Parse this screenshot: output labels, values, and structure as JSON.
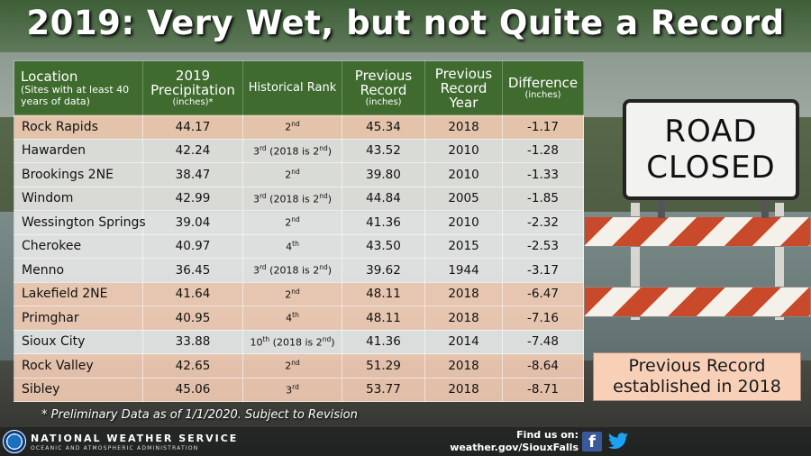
{
  "title": "2019: Very Wet, but not Quite a Record",
  "table": {
    "headers": {
      "location": "Location",
      "location_sub": "(Sites with at least 40 years of data)",
      "precip": "2019 Precipitation",
      "precip_sub": "(inches)*",
      "rank": "Historical Rank",
      "prev_record": "Previous Record",
      "prev_record_sub": "(inches)",
      "prev_year": "Previous Record Year",
      "diff": "Difference",
      "diff_sub": "(inches)"
    },
    "rows": [
      {
        "location": "Rock Rapids",
        "precip": "44.17",
        "rank_num": "2",
        "rank_sup": "nd",
        "rank_note": "",
        "prev": "45.34",
        "year": "2018",
        "diff": "-1.17"
      },
      {
        "location": "Hawarden",
        "precip": "42.24",
        "rank_num": "3",
        "rank_sup": "rd",
        "rank_note": "(2018 is 2",
        "rank_note_sup": "nd",
        "prev": "43.52",
        "year": "2010",
        "diff": "-1.28"
      },
      {
        "location": "Brookings 2NE",
        "precip": "38.47",
        "rank_num": "2",
        "rank_sup": "nd",
        "rank_note": "",
        "prev": "39.80",
        "year": "2010",
        "diff": "-1.33"
      },
      {
        "location": "Windom",
        "precip": "42.99",
        "rank_num": "3",
        "rank_sup": "rd",
        "rank_note": "(2018 is 2",
        "rank_note_sup": "nd",
        "prev": "44.84",
        "year": "2005",
        "diff": "-1.85"
      },
      {
        "location": "Wessington Springs",
        "precip": "39.04",
        "rank_num": "2",
        "rank_sup": "nd",
        "rank_note": "",
        "prev": "41.36",
        "year": "2010",
        "diff": "-2.32"
      },
      {
        "location": "Cherokee",
        "precip": "40.97",
        "rank_num": "4",
        "rank_sup": "th",
        "rank_note": "",
        "prev": "43.50",
        "year": "2015",
        "diff": "-2.53"
      },
      {
        "location": "Menno",
        "precip": "36.45",
        "rank_num": "3",
        "rank_sup": "rd",
        "rank_note": "(2018 is 2",
        "rank_note_sup": "nd",
        "prev": "39.62",
        "year": "1944",
        "diff": "-3.17"
      },
      {
        "location": "Lakefield 2NE",
        "precip": "41.64",
        "rank_num": "2",
        "rank_sup": "nd",
        "rank_note": "",
        "prev": "48.11",
        "year": "2018",
        "diff": "-6.47"
      },
      {
        "location": "Primghar",
        "precip": "40.95",
        "rank_num": "4",
        "rank_sup": "th",
        "rank_note": "",
        "prev": "48.11",
        "year": "2018",
        "diff": "-7.16"
      },
      {
        "location": "Sioux City",
        "precip": "33.88",
        "rank_num": "10",
        "rank_sup": "th",
        "rank_note": "(2018 is 2",
        "rank_note_sup": "nd",
        "prev": "41.36",
        "year": "2014",
        "diff": "-7.48"
      },
      {
        "location": "Rock Valley",
        "precip": "42.65",
        "rank_num": "2",
        "rank_sup": "nd",
        "rank_note": "",
        "prev": "51.29",
        "year": "2018",
        "diff": "-8.64"
      },
      {
        "location": "Sibley",
        "precip": "45.06",
        "rank_num": "3",
        "rank_sup": "rd",
        "rank_note": "",
        "prev": "53.77",
        "year": "2018",
        "diff": "-8.71"
      }
    ]
  },
  "footnote": "* Preliminary Data as of 1/1/2020. Subject to Revision",
  "callout": {
    "line1": "Previous Record",
    "line2": "established in 2018"
  },
  "sign": {
    "line1": "ROAD",
    "line2": "CLOSED"
  },
  "footer": {
    "agency": "NATIONAL WEATHER SERVICE",
    "agency_sub": "OCEANIC AND ATMOSPHERIC ADMINISTRATION",
    "find_us": "Find us on:",
    "website": "weather.gov/SiouxFalls",
    "facebook_glyph": "f"
  },
  "colors": {
    "header_green": "#3f6b2f",
    "record_2018_row": "#f8d0b8",
    "other_row": "#ececea"
  }
}
